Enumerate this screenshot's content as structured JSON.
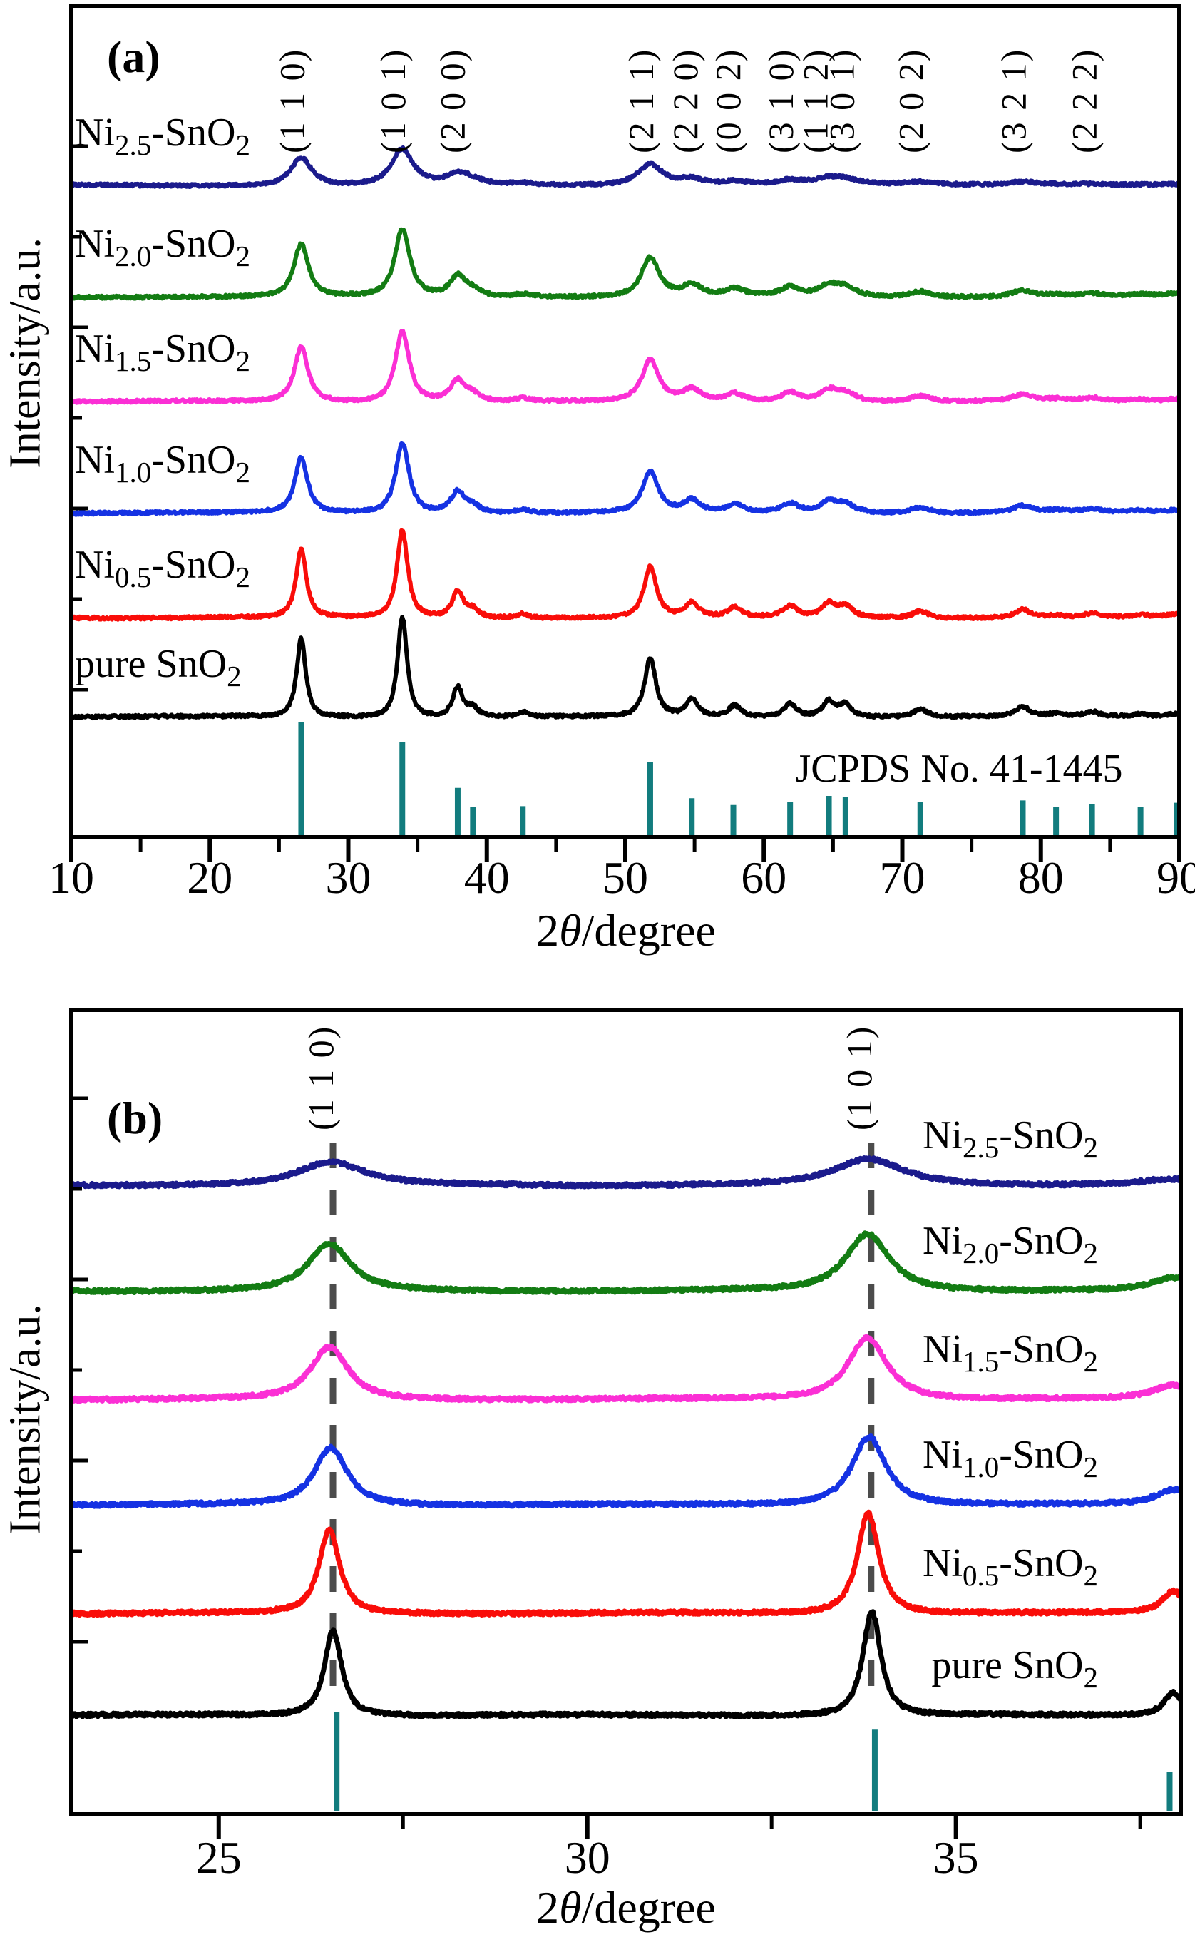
{
  "samples": [
    {
      "id": "Ni2.5-SnO2",
      "parts": [
        {
          "t": "Ni"
        },
        {
          "t": "2.5",
          "sub": true
        },
        {
          "t": "-SnO"
        },
        {
          "t": "2",
          "sub": true
        }
      ],
      "color": "#1b1b8c"
    },
    {
      "id": "Ni2.0-SnO2",
      "parts": [
        {
          "t": "Ni"
        },
        {
          "t": "2.0",
          "sub": true
        },
        {
          "t": "-SnO"
        },
        {
          "t": "2",
          "sub": true
        }
      ],
      "color": "#137c13"
    },
    {
      "id": "Ni1.5-SnO2",
      "parts": [
        {
          "t": "Ni"
        },
        {
          "t": "1.5",
          "sub": true
        },
        {
          "t": "-SnO"
        },
        {
          "t": "2",
          "sub": true
        }
      ],
      "color": "#fb2fd5"
    },
    {
      "id": "Ni1.0-SnO2",
      "parts": [
        {
          "t": "Ni"
        },
        {
          "t": "1.0",
          "sub": true
        },
        {
          "t": "-SnO"
        },
        {
          "t": "2",
          "sub": true
        }
      ],
      "color": "#1532e3"
    },
    {
      "id": "Ni0.5-SnO2",
      "parts": [
        {
          "t": "Ni"
        },
        {
          "t": "0.5",
          "sub": true
        },
        {
          "t": "-SnO"
        },
        {
          "t": "2",
          "sub": true
        }
      ],
      "color": "#f90d09"
    },
    {
      "id": "pure SnO2",
      "parts": [
        {
          "t": "pure SnO"
        },
        {
          "t": "2",
          "sub": true
        }
      ],
      "color": "#000000"
    }
  ],
  "chart_data": [
    {
      "type": "line",
      "panel_label": "(a)",
      "ylabel": "Intensity/a.u.",
      "xlabel": "2θ/degree",
      "xlabel_parts": {
        "pre": "2",
        "theta": "θ",
        "post": "/degree"
      },
      "xlim": [
        10,
        90
      ],
      "x_major_ticks": [
        10,
        20,
        30,
        40,
        50,
        60,
        70,
        80,
        90
      ],
      "x_minor_ticks": [
        15,
        25,
        35,
        45,
        55,
        65,
        75,
        85
      ],
      "grid": false,
      "miller_indices": [
        {
          "hkl": "(1 1 0)",
          "two_theta": 26.6,
          "label_theta": 26.8
        },
        {
          "hkl": "(1 0 1)",
          "two_theta": 33.9,
          "label_theta": 34.1
        },
        {
          "hkl": "(2 0 0)",
          "two_theta": 37.9,
          "label_theta": 38.4
        },
        {
          "hkl": "(2 1 1)",
          "two_theta": 51.8,
          "label_theta": 52.0
        },
        {
          "hkl": "(2 2 0)",
          "two_theta": 54.8,
          "label_theta": 55.2
        },
        {
          "hkl": "(0 0 2)",
          "two_theta": 57.9,
          "label_theta": 58.3
        },
        {
          "hkl": "(3 1 0)",
          "two_theta": 61.9,
          "label_theta": 62.1
        },
        {
          "hkl": "(1 1 2)",
          "two_theta": 64.7,
          "label_theta": 64.6
        },
        {
          "hkl": "(3 0 1)",
          "two_theta": 65.9,
          "label_theta": 66.5
        },
        {
          "hkl": "(2 0 2)",
          "two_theta": 71.3,
          "label_theta": 71.5
        },
        {
          "hkl": "(3 2 1)",
          "two_theta": 78.7,
          "label_theta": 78.9
        },
        {
          "hkl": "(2 2 2)",
          "two_theta": 83.7,
          "label_theta": 84.0
        }
      ],
      "peaks_rel": [
        {
          "two_theta": 26.6,
          "i": 0.78
        },
        {
          "two_theta": 33.9,
          "i": 1.0
        },
        {
          "two_theta": 37.9,
          "i": 0.3
        },
        {
          "two_theta": 39.0,
          "i": 0.09
        },
        {
          "two_theta": 42.6,
          "i": 0.045
        },
        {
          "two_theta": 51.8,
          "i": 0.58
        },
        {
          "two_theta": 54.8,
          "i": 0.17
        },
        {
          "two_theta": 57.9,
          "i": 0.11
        },
        {
          "two_theta": 61.9,
          "i": 0.13
        },
        {
          "two_theta": 64.7,
          "i": 0.155
        },
        {
          "two_theta": 65.9,
          "i": 0.12
        },
        {
          "two_theta": 71.3,
          "i": 0.08
        },
        {
          "two_theta": 78.7,
          "i": 0.095
        },
        {
          "two_theta": 81.1,
          "i": 0.025
        },
        {
          "two_theta": 83.7,
          "i": 0.045
        },
        {
          "two_theta": 87.2,
          "i": 0.025
        },
        {
          "two_theta": 89.8,
          "i": 0.035
        }
      ],
      "series": [
        {
          "sample": "Ni2.5-SnO2",
          "rel_height": 0.36,
          "width_deg": 1.0
        },
        {
          "sample": "Ni2.0-SnO2",
          "rel_height": 0.67,
          "width_deg": 0.7
        },
        {
          "sample": "Ni1.5-SnO2",
          "rel_height": 0.7,
          "width_deg": 0.66
        },
        {
          "sample": "Ni1.0-SnO2",
          "rel_height": 0.7,
          "width_deg": 0.62
        },
        {
          "sample": "Ni0.5-SnO2",
          "rel_height": 0.87,
          "width_deg": 0.5
        },
        {
          "sample": "pure SnO2",
          "rel_height": 1.0,
          "width_deg": 0.44
        }
      ],
      "jcpds": {
        "label": "JCPDS No. 41-1445",
        "color": "#127c7e",
        "sticks": [
          [
            26.6,
            100
          ],
          [
            33.9,
            82
          ],
          [
            37.9,
            42
          ],
          [
            39.0,
            25
          ],
          [
            42.6,
            26
          ],
          [
            51.8,
            65
          ],
          [
            54.8,
            33
          ],
          [
            57.8,
            27
          ],
          [
            61.9,
            30
          ],
          [
            64.7,
            35
          ],
          [
            65.9,
            34
          ],
          [
            71.3,
            30
          ],
          [
            78.7,
            31
          ],
          [
            81.1,
            25
          ],
          [
            83.7,
            28
          ],
          [
            87.2,
            25
          ],
          [
            89.8,
            29
          ]
        ]
      }
    },
    {
      "type": "line",
      "panel_label": "(b)",
      "ylabel": "Intensity/a.u.",
      "xlabel": "2θ/degree",
      "xlabel_parts": {
        "pre": "2",
        "theta": "θ",
        "post": "/degree"
      },
      "xlim": [
        23,
        38.05
      ],
      "x_major_ticks": [
        25,
        30,
        35
      ],
      "x_minor_ticks": [
        27.5,
        32.5,
        37.5
      ],
      "grid": false,
      "dashed_guides": [
        26.55,
        33.85
      ],
      "miller_indices": [
        {
          "hkl": "(1 1 0)",
          "two_theta": 26.55,
          "label_theta": 26.55
        },
        {
          "hkl": "(1 0 1)",
          "two_theta": 33.85,
          "label_theta": 33.85
        }
      ],
      "series": [
        {
          "sample": "Ni2.5-SnO2",
          "peak_110": 26.52,
          "h110": 0.22,
          "peak_101": 33.82,
          "h101": 0.25,
          "width_deg": 0.6
        },
        {
          "sample": "Ni2.0-SnO2",
          "peak_110": 26.5,
          "h110": 0.45,
          "peak_101": 33.8,
          "h101": 0.55,
          "width_deg": 0.38
        },
        {
          "sample": "Ni1.5-SnO2",
          "peak_110": 26.5,
          "h110": 0.5,
          "peak_101": 33.8,
          "h101": 0.6,
          "width_deg": 0.34
        },
        {
          "sample": "Ni1.0-SnO2",
          "peak_110": 26.52,
          "h110": 0.55,
          "peak_101": 33.82,
          "h101": 0.66,
          "width_deg": 0.3
        },
        {
          "sample": "Ni0.5-SnO2",
          "peak_110": 26.5,
          "h110": 0.8,
          "peak_101": 33.81,
          "h101": 0.97,
          "width_deg": 0.19
        },
        {
          "sample": "pure SnO2",
          "peak_110": 26.55,
          "h110": 0.82,
          "peak_101": 33.86,
          "h101": 1.0,
          "width_deg": 0.16
        }
      ],
      "jcpds": {
        "color": "#127c7e",
        "sticks": [
          [
            26.6,
            100
          ],
          [
            33.9,
            82
          ],
          [
            37.9,
            40
          ]
        ]
      }
    }
  ]
}
